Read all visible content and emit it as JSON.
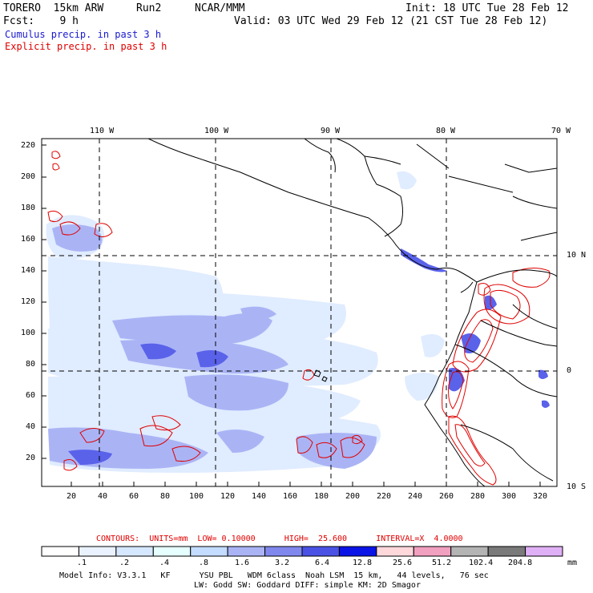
{
  "header": {
    "model": "TORERO  15km ARW",
    "run": "Run2",
    "org": "NCAR/MMM",
    "init": "Init: 18 UTC Tue 28 Feb 12",
    "fcst": "Fcst:    9 h",
    "valid": "Valid: 03 UTC Wed 29 Feb 12 (21 CST Tue 28 Feb 12)",
    "cumulus_label": "Cumulus precip. in past 3 h",
    "explicit_label": "Explicit precip. in past 3 h",
    "cumulus_color": "#1a1ad0",
    "explicit_color": "#e00000"
  },
  "map": {
    "lon_labels": [
      "110 W",
      "100 W",
      "90 W",
      "80 W",
      "70 W"
    ],
    "lat_labels": [
      "10 N",
      "0",
      "10 S"
    ],
    "y_ticks": [
      "220",
      "200",
      "180",
      "160",
      "140",
      "120",
      "100",
      "80",
      "60",
      "40",
      "20"
    ],
    "x_ticks": [
      "20",
      "40",
      "60",
      "80",
      "100",
      "120",
      "140",
      "160",
      "180",
      "200",
      "220",
      "240",
      "260",
      "280",
      "300",
      "320"
    ]
  },
  "footer": {
    "contours_line": "CONTOURS:  UNITS=mm  LOW= 0.10000      HIGH=  25.600      INTERVAL=X  4.0000",
    "colorbar_levels": [
      ".1",
      ".2",
      ".4",
      ".8",
      "1.6",
      "3.2",
      "6.4",
      "12.8",
      "25.6",
      "51.2",
      "102.4",
      "204.8"
    ],
    "colorbar_colors": [
      "#ffffff",
      "#eaf2ff",
      "#d6e8ff",
      "#e6ffff",
      "#c4dcff",
      "#aab4f5",
      "#8088ee",
      "#4a52e6",
      "#0a14e6",
      "#ffd8dc",
      "#f2a0c0",
      "#b4b4b4",
      "#7a7a7a",
      "#e0b0f6"
    ],
    "units": "mm",
    "model_info_1": "Model Info: V3.3.1   KF      YSU PBL   WDM 6class  Noah LSM  15 km,   44 levels,   76 sec",
    "model_info_2": "LW: Godd SW: Goddard DIFF: simple KM: 2D Smagor"
  }
}
